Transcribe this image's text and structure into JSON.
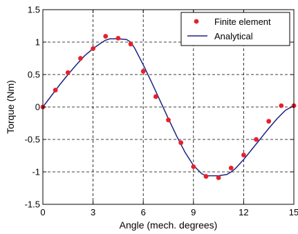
{
  "chart_data": {
    "type": "line",
    "xlabel": "Angle (mech. degrees)",
    "ylabel": "Torque (Nm)",
    "xlim": [
      0,
      15
    ],
    "ylim": [
      -1.5,
      1.5
    ],
    "xticks": [
      0,
      3,
      6,
      9,
      12,
      15
    ],
    "xtick_labels": [
      "0",
      "3",
      "6",
      "9",
      "12",
      "15"
    ],
    "yticks": [
      -1.5,
      -1,
      -0.5,
      0,
      0.5,
      1,
      1.5
    ],
    "ytick_labels": [
      "-1.5",
      "-1",
      "-0.5",
      "0",
      "0.5",
      "1",
      "1.5"
    ],
    "grid": true,
    "legend_position": "top-right",
    "series": [
      {
        "name": "Finite element",
        "kind": "scatter",
        "color": "#e8202a",
        "x": [
          0,
          0.75,
          1.5,
          2.25,
          3.0,
          3.75,
          4.5,
          5.25,
          6.0,
          6.75,
          7.5,
          8.25,
          9.0,
          9.75,
          10.5,
          11.25,
          12.0,
          12.75,
          13.5,
          14.25,
          15.0
        ],
        "y": [
          0,
          0.26,
          0.53,
          0.75,
          0.9,
          1.09,
          1.06,
          0.97,
          0.55,
          0.16,
          -0.2,
          -0.55,
          -0.92,
          -1.07,
          -1.09,
          -0.94,
          -0.74,
          -0.5,
          -0.22,
          0.02,
          0.02
        ]
      },
      {
        "name": "Analytical",
        "kind": "line",
        "color": "#1a237e",
        "x": [
          0,
          0.5,
          1.0,
          1.5,
          2.0,
          2.5,
          3.0,
          3.5,
          3.75,
          4.0,
          4.5,
          5.0,
          5.25,
          5.5,
          6.0,
          6.5,
          7.0,
          7.5,
          8.0,
          8.5,
          9.0,
          9.5,
          9.75,
          10.0,
          10.5,
          11.0,
          11.25,
          11.5,
          12.0,
          12.5,
          13.0,
          13.5,
          14.0,
          14.5,
          15.0
        ],
        "y": [
          0,
          0.17,
          0.34,
          0.5,
          0.65,
          0.79,
          0.9,
          0.99,
          1.03,
          1.05,
          1.05,
          1.04,
          1.0,
          0.9,
          0.65,
          0.38,
          0.1,
          -0.18,
          -0.45,
          -0.7,
          -0.9,
          -1.03,
          -1.06,
          -1.06,
          -1.06,
          -1.04,
          -1.0,
          -0.95,
          -0.81,
          -0.65,
          -0.49,
          -0.33,
          -0.18,
          -0.05,
          0.02
        ]
      }
    ]
  }
}
